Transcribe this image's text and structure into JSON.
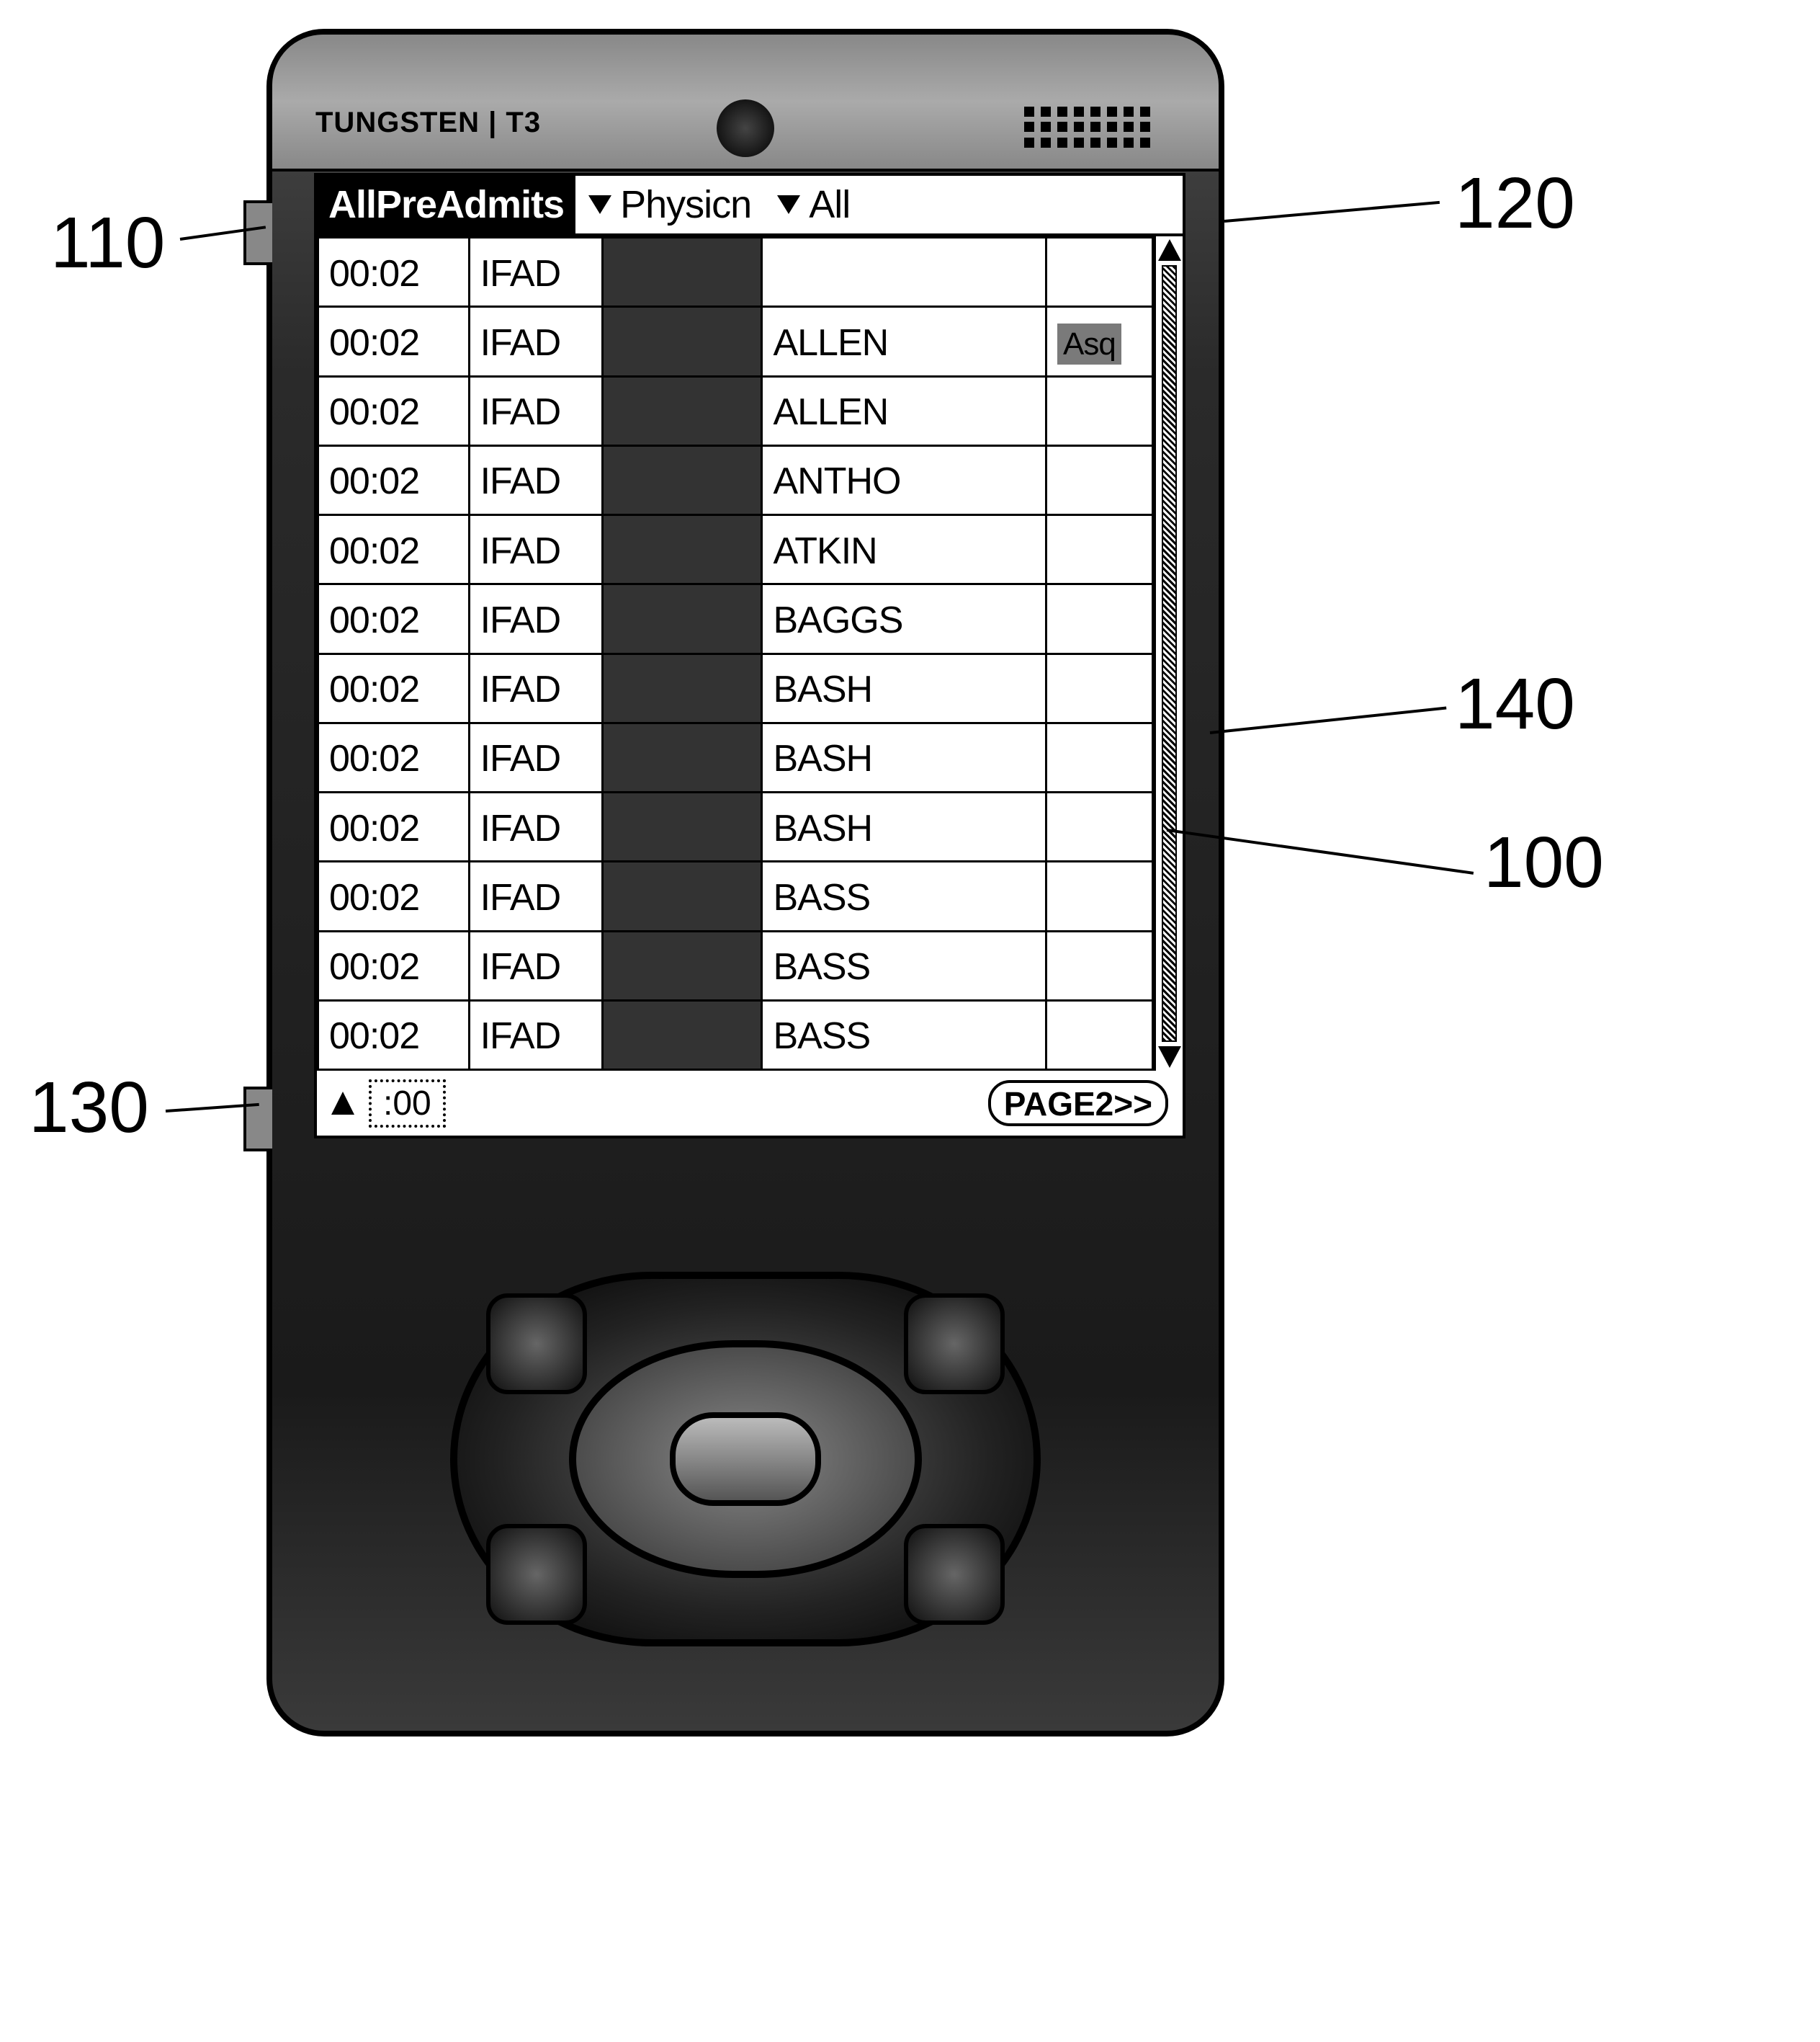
{
  "device": {
    "brand": "TUNGSTEN | T3"
  },
  "header": {
    "active_tab": "AllPreAdmits",
    "dropdown1": "Physicn",
    "dropdown2": "All"
  },
  "table": {
    "rows": [
      {
        "time": "00:02",
        "code": "IFAD",
        "mid": "",
        "name": "",
        "tag": ""
      },
      {
        "time": "00:02",
        "code": "IFAD",
        "mid": "",
        "name": "ALLEN",
        "tag": "Asq"
      },
      {
        "time": "00:02",
        "code": "IFAD",
        "mid": "",
        "name": "ALLEN",
        "tag": ""
      },
      {
        "time": "00:02",
        "code": "IFAD",
        "mid": "",
        "name": "ANTHO",
        "tag": ""
      },
      {
        "time": "00:02",
        "code": "IFAD",
        "mid": "",
        "name": "ATKIN",
        "tag": ""
      },
      {
        "time": "00:02",
        "code": "IFAD",
        "mid": "",
        "name": "BAGGS",
        "tag": ""
      },
      {
        "time": "00:02",
        "code": "IFAD",
        "mid": "",
        "name": "BASH",
        "tag": ""
      },
      {
        "time": "00:02",
        "code": "IFAD",
        "mid": "",
        "name": "BASH",
        "tag": ""
      },
      {
        "time": "00:02",
        "code": "IFAD",
        "mid": "",
        "name": "BASH",
        "tag": ""
      },
      {
        "time": "00:02",
        "code": "IFAD",
        "mid": "",
        "name": "BASS",
        "tag": ""
      },
      {
        "time": "00:02",
        "code": "IFAD",
        "mid": "",
        "name": "BASS",
        "tag": ""
      },
      {
        "time": "00:02",
        "code": "IFAD",
        "mid": "",
        "name": "BASS",
        "tag": ""
      }
    ]
  },
  "footer": {
    "time_field": ":00",
    "page_button": "PAGE2>>"
  },
  "annotations": {
    "a110": "110",
    "a120": "120",
    "a130": "130",
    "a140": "140",
    "a100": "100"
  }
}
